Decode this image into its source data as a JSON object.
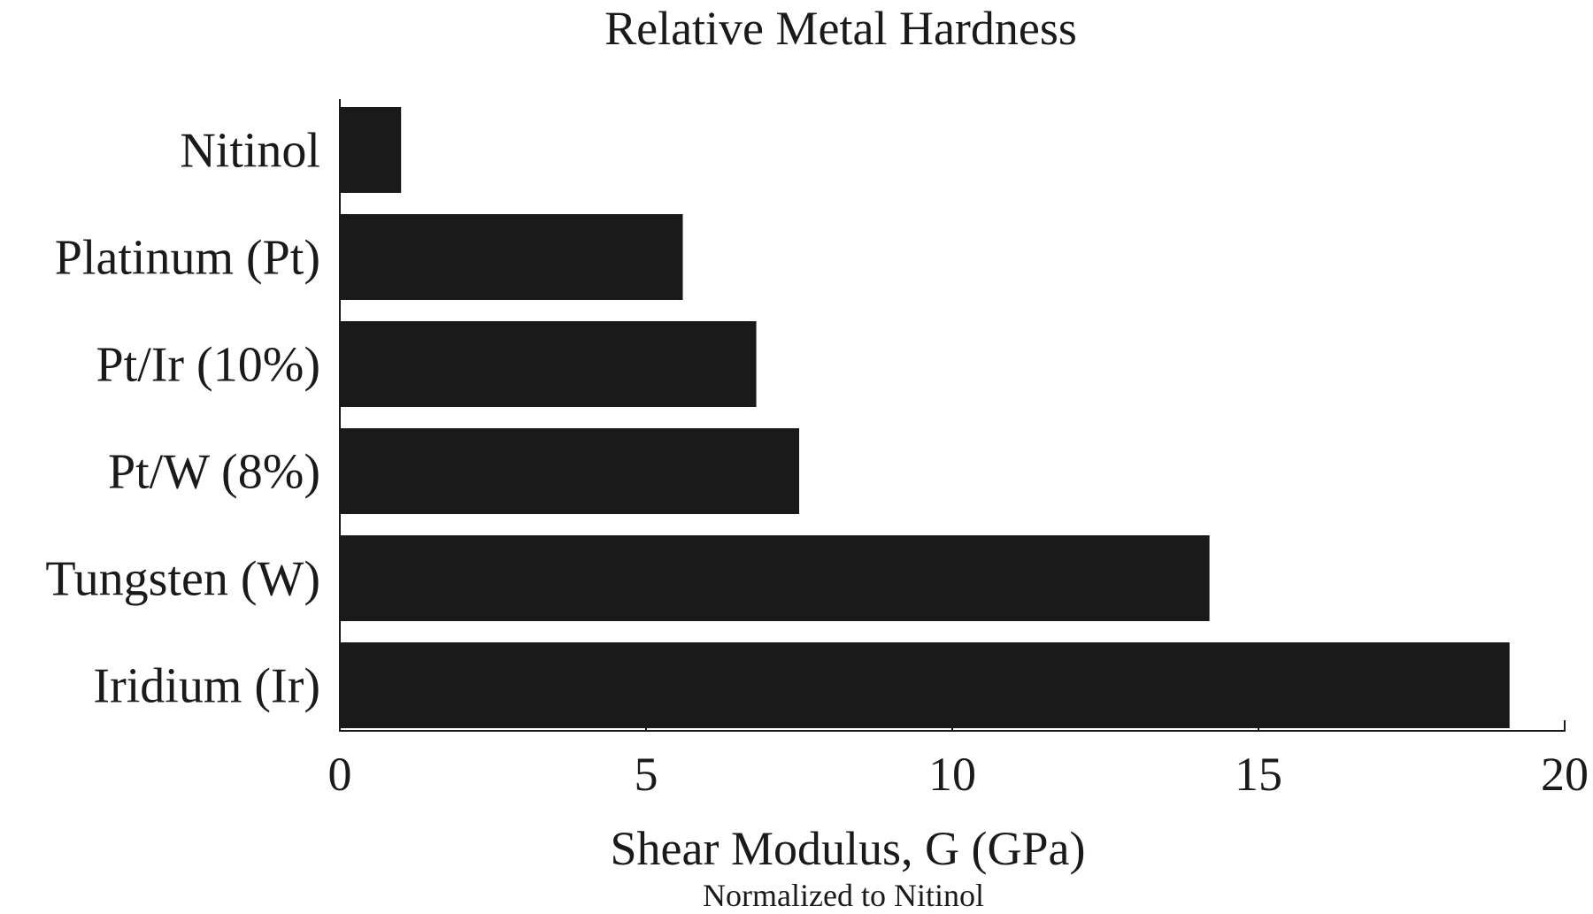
{
  "chart_data": {
    "type": "bar",
    "orientation": "horizontal",
    "title": "Relative Metal Hardness",
    "xlabel": "Shear Modulus, G (GPa)",
    "xlabel_sub": "Normalized to Nitinol",
    "ylabel": "",
    "categories": [
      "Nitinol",
      "Platinum (Pt)",
      "Pt/Ir (10%)",
      "Pt/W (8%)",
      "Tungsten (W)",
      "Iridium (Ir)"
    ],
    "values": [
      1.0,
      5.6,
      6.8,
      7.5,
      14.2,
      19.1
    ],
    "xlim": [
      0,
      20
    ],
    "xticks": [
      0,
      5,
      10,
      15,
      20
    ],
    "bar_color": "#1a1a1a",
    "grid": false,
    "legend": "none"
  }
}
